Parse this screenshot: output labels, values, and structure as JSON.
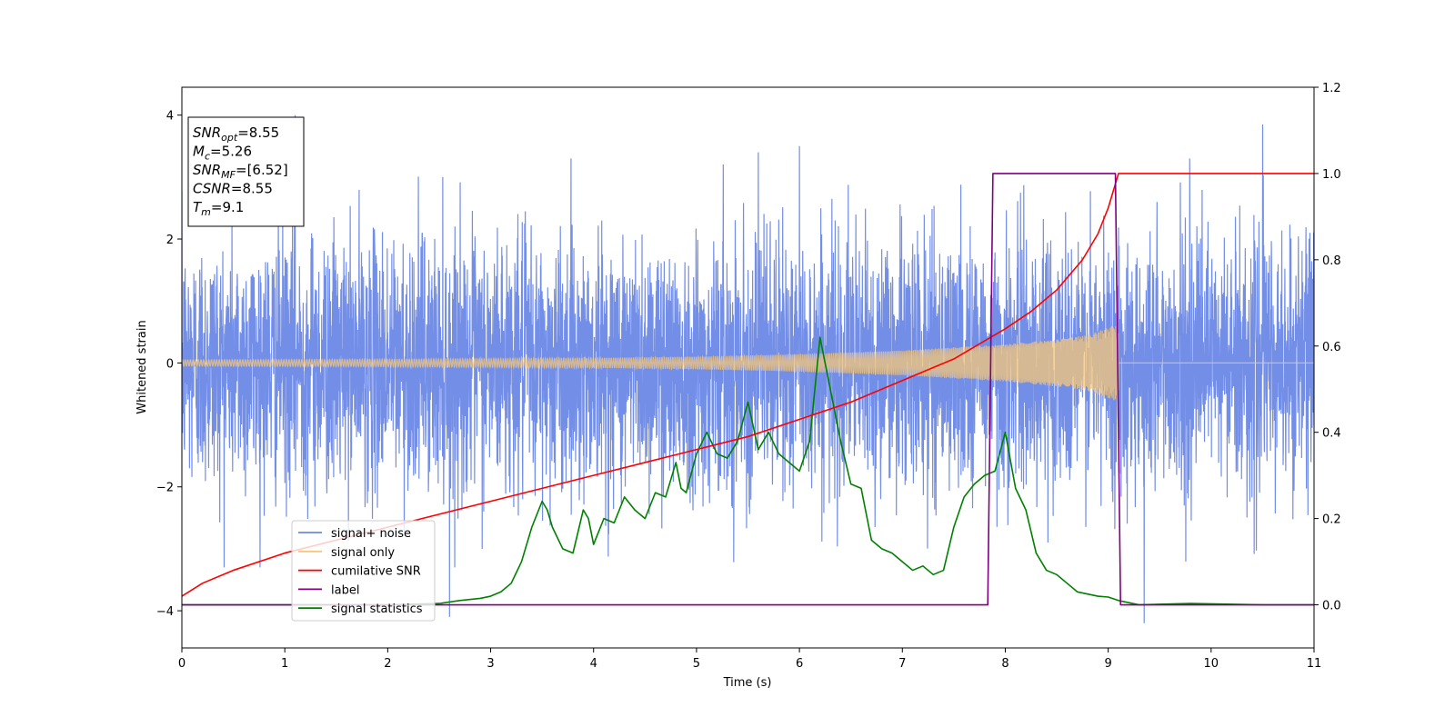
{
  "chart_data": {
    "type": "line",
    "title": "",
    "xlabel": "Time (s)",
    "ylabel": "Whitened strain",
    "y2label": "",
    "xlim": [
      0,
      11
    ],
    "ylim": [
      -4.6,
      4.45
    ],
    "y2lim": [
      -0.1,
      1.2
    ],
    "x_ticks": [
      0,
      1,
      2,
      3,
      4,
      5,
      6,
      7,
      8,
      9,
      10,
      11
    ],
    "y_ticks": [
      -4,
      -2,
      0,
      2,
      4
    ],
    "y2_ticks": [
      0.0,
      0.2,
      0.4,
      0.6,
      0.8,
      1.0,
      1.2
    ],
    "x_tick_labels": [
      "0",
      "1",
      "2",
      "3",
      "4",
      "5",
      "6",
      "7",
      "8",
      "9",
      "10",
      "11"
    ],
    "y_tick_labels": [
      "−4",
      "−2",
      "0",
      "2",
      "4"
    ],
    "y2_tick_labels": [
      "0.0",
      "0.2",
      "0.4",
      "0.6",
      "0.8",
      "1.0",
      "1.2"
    ],
    "grid": false,
    "legend_position": "lower-left",
    "stats_box": [
      {
        "base": "SNR",
        "sub": "opt",
        "value": "=8.55"
      },
      {
        "base": "M",
        "sub": "c",
        "value": "=5.26"
      },
      {
        "base": "SNR",
        "sub": "MF",
        "value": "=[6.52]"
      },
      {
        "base": "CSNR",
        "sub": "",
        "value": "=8.55"
      },
      {
        "base": "T",
        "sub": "m",
        "value": "=9.1"
      }
    ],
    "series": [
      {
        "name": "signal+ noise",
        "axis": "left",
        "color": "#6b88e6",
        "kind": "noise",
        "amplitude_sd": 1.0,
        "x_range": [
          0,
          11
        ],
        "peak_values": [
          [
            1.1,
            4.0
          ],
          [
            2.6,
            -4.1
          ],
          [
            5.6,
            3.4
          ],
          [
            6.0,
            3.5
          ],
          [
            9.35,
            -4.2
          ],
          [
            10.5,
            3.85
          ]
        ]
      },
      {
        "name": "signal only",
        "axis": "left",
        "color": "#f5c77a",
        "kind": "chirp",
        "envelope": [
          [
            0,
            0.05
          ],
          [
            2,
            0.06
          ],
          [
            4,
            0.08
          ],
          [
            5,
            0.1
          ],
          [
            6,
            0.14
          ],
          [
            7,
            0.2
          ],
          [
            8,
            0.3
          ],
          [
            8.5,
            0.38
          ],
          [
            8.8,
            0.45
          ],
          [
            9.05,
            0.6
          ]
        ],
        "merge_time": 9.1
      },
      {
        "name": "cumilative SNR",
        "axis": "right",
        "color": "#ff0000",
        "x": [
          0,
          0.2,
          0.5,
          1,
          1.5,
          2,
          2.5,
          3,
          3.5,
          4,
          4.5,
          5,
          5.5,
          6,
          6.5,
          7,
          7.5,
          8,
          8.25,
          8.5,
          8.75,
          8.9,
          9.0,
          9.05,
          9.1,
          11
        ],
        "values": [
          0.02,
          0.05,
          0.08,
          0.12,
          0.15,
          0.18,
          0.21,
          0.24,
          0.27,
          0.3,
          0.33,
          0.36,
          0.39,
          0.43,
          0.47,
          0.52,
          0.57,
          0.64,
          0.68,
          0.73,
          0.8,
          0.86,
          0.92,
          0.96,
          1.0,
          1.0
        ]
      },
      {
        "name": "label",
        "axis": "right",
        "color": "#800080",
        "x": [
          0,
          7.83,
          7.88,
          9.07,
          9.12,
          11
        ],
        "values": [
          0,
          0,
          1,
          1,
          0,
          0
        ]
      },
      {
        "name": "signal statistics",
        "axis": "right",
        "color": "#008000",
        "x": [
          0,
          0.5,
          1,
          1.5,
          2,
          2.5,
          2.7,
          2.9,
          3.0,
          3.1,
          3.2,
          3.3,
          3.4,
          3.5,
          3.55,
          3.6,
          3.7,
          3.8,
          3.9,
          3.95,
          4.0,
          4.1,
          4.2,
          4.3,
          4.4,
          4.5,
          4.6,
          4.7,
          4.8,
          4.85,
          4.9,
          5.0,
          5.1,
          5.2,
          5.3,
          5.4,
          5.5,
          5.6,
          5.7,
          5.8,
          5.9,
          6.0,
          6.1,
          6.2,
          6.3,
          6.4,
          6.5,
          6.6,
          6.7,
          6.8,
          6.9,
          7.0,
          7.1,
          7.2,
          7.3,
          7.4,
          7.5,
          7.6,
          7.7,
          7.8,
          7.9,
          8.0,
          8.1,
          8.2,
          8.3,
          8.4,
          8.5,
          8.6,
          8.7,
          8.8,
          8.9,
          9.0,
          9.1,
          9.3,
          9.8,
          10.5,
          11
        ],
        "values": [
          0.0,
          0.0,
          0.0,
          0.0,
          0.0,
          0.003,
          0.01,
          0.015,
          0.02,
          0.03,
          0.05,
          0.1,
          0.18,
          0.24,
          0.22,
          0.18,
          0.13,
          0.12,
          0.22,
          0.2,
          0.14,
          0.2,
          0.19,
          0.25,
          0.22,
          0.2,
          0.26,
          0.25,
          0.33,
          0.27,
          0.26,
          0.35,
          0.4,
          0.35,
          0.34,
          0.38,
          0.47,
          0.36,
          0.4,
          0.35,
          0.33,
          0.31,
          0.38,
          0.62,
          0.5,
          0.38,
          0.28,
          0.27,
          0.15,
          0.13,
          0.12,
          0.1,
          0.08,
          0.09,
          0.07,
          0.08,
          0.18,
          0.25,
          0.28,
          0.3,
          0.31,
          0.4,
          0.27,
          0.22,
          0.12,
          0.08,
          0.07,
          0.05,
          0.03,
          0.025,
          0.02,
          0.018,
          0.01,
          0.0,
          0.003,
          0.0,
          0.0
        ]
      }
    ]
  }
}
